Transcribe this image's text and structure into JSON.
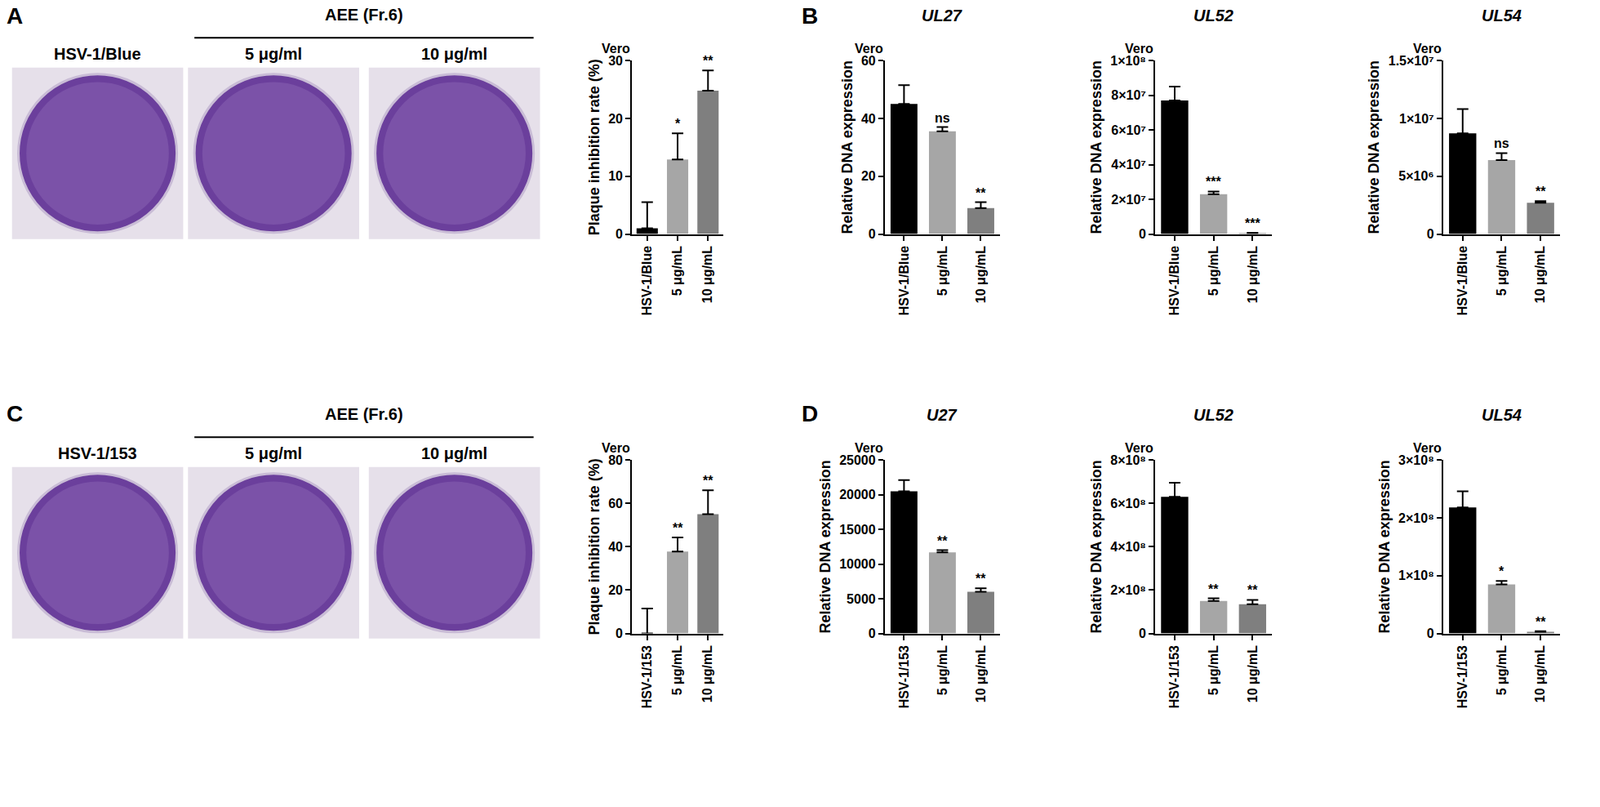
{
  "panel_labels": [
    "A",
    "B",
    "C",
    "D"
  ],
  "photo_panels": [
    {
      "control": "HSV-1/Blue",
      "treatment": "AEE (Fr.6)",
      "doses": [
        "5 μg/ml",
        "10 μg/ml"
      ]
    },
    {
      "control": "HSV-1/153",
      "treatment": "AEE (Fr.6)",
      "doses": [
        "5 μg/ml",
        "10 μg/ml"
      ]
    }
  ],
  "chart_data": [
    {
      "type": "bar",
      "subtitle": "Vero",
      "y_label": "Plaque inhibition rate (%)",
      "categories": [
        "HSV-1/Blue",
        "5 μg/mL",
        "10 μg/mL"
      ],
      "values": [
        1,
        12.9,
        24.8
      ],
      "error": [
        4.5,
        4.5,
        3.5
      ],
      "significance": [
        null,
        "*",
        "**"
      ],
      "colors": [
        "#000000",
        "#a6a6a6",
        "#7f7f7f"
      ],
      "ylim": [
        0,
        30
      ],
      "yticks": [
        0,
        10,
        20,
        30
      ]
    },
    {
      "type": "bar",
      "title": "UL27",
      "subtitle": "Vero",
      "y_label": "Relative DNA expression",
      "categories": [
        "HSV-1/Blue",
        "5 μg/mL",
        "10 μg/mL"
      ],
      "values": [
        45,
        35.5,
        9
      ],
      "error": [
        6.5,
        1.5,
        2
      ],
      "significance": [
        null,
        "ns",
        "**"
      ],
      "colors": [
        "#000000",
        "#a6a6a6",
        "#7f7f7f"
      ],
      "ylim": [
        0,
        60
      ],
      "yticks": [
        0,
        20,
        40,
        60
      ]
    },
    {
      "type": "bar",
      "title": "UL52",
      "subtitle": "Vero",
      "y_label": "Relative DNA expression",
      "categories": [
        "HSV-1/Blue",
        "5 μg/mL",
        "10 μg/mL"
      ],
      "values": [
        77000000,
        23000000,
        500000
      ],
      "error": [
        8000000,
        1500000,
        200000
      ],
      "significance": [
        null,
        "***",
        "***"
      ],
      "colors": [
        "#000000",
        "#a6a6a6",
        "#7f7f7f"
      ],
      "ylim": [
        0,
        100000000
      ],
      "yticks": [
        0,
        {
          "value": 20000000,
          "label": "2×10⁷"
        },
        {
          "value": 40000000,
          "label": "4×10⁷"
        },
        {
          "value": 60000000,
          "label": "6×10⁷"
        },
        {
          "value": 80000000,
          "label": "8×10⁷"
        },
        {
          "value": 100000000,
          "label": "1×10⁸"
        }
      ]
    },
    {
      "type": "bar",
      "title": "UL54",
      "subtitle": "Vero",
      "y_label": "Relative DNA expression",
      "categories": [
        "HSV-1/Blue",
        "5 μg/mL",
        "10 μg/mL"
      ],
      "values": [
        8700000,
        6400000,
        2700000
      ],
      "error": [
        2100000,
        600000,
        150000
      ],
      "significance": [
        null,
        "ns",
        "**"
      ],
      "colors": [
        "#000000",
        "#a6a6a6",
        "#7f7f7f"
      ],
      "ylim": [
        0,
        15000000
      ],
      "yticks": [
        0,
        {
          "value": 5000000,
          "label": "5×10⁶"
        },
        {
          "value": 10000000,
          "label": "1×10⁷"
        },
        {
          "value": 15000000,
          "label": "1.5×10⁷"
        }
      ]
    },
    {
      "type": "bar",
      "subtitle": "Vero",
      "y_label": "Plaque inhibition rate (%)",
      "categories": [
        "HSV-1/153",
        "5 μg/mL",
        "10 μg/mL"
      ],
      "values": [
        0,
        37.8,
        55
      ],
      "error": [
        11.5,
        6.5,
        11
      ],
      "significance": [
        null,
        "**",
        "**"
      ],
      "colors": [
        "#000000",
        "#a6a6a6",
        "#7f7f7f"
      ],
      "ylim": [
        0,
        80
      ],
      "yticks": [
        0,
        20,
        40,
        60,
        80
      ]
    },
    {
      "type": "bar",
      "title": "U27",
      "subtitle": "Vero",
      "y_label": "Relative DNA expression",
      "categories": [
        "HSV-1/153",
        "5 μg/mL",
        "10 μg/mL"
      ],
      "values": [
        20500,
        11700,
        6000
      ],
      "error": [
        1600,
        300,
        500
      ],
      "significance": [
        null,
        "**",
        "**"
      ],
      "colors": [
        "#000000",
        "#a6a6a6",
        "#7f7f7f"
      ],
      "ylim": [
        0,
        25000
      ],
      "yticks": [
        0,
        5000,
        10000,
        15000,
        20000,
        25000
      ]
    },
    {
      "type": "bar",
      "title": "UL52",
      "subtitle": "Vero",
      "y_label": "Relative DNA expression",
      "categories": [
        "HSV-1/153",
        "5 μg/mL",
        "10 μg/mL"
      ],
      "values": [
        630000000,
        150000000,
        135000000
      ],
      "error": [
        65000000,
        12000000,
        20000000
      ],
      "significance": [
        null,
        "**",
        "**"
      ],
      "colors": [
        "#000000",
        "#a6a6a6",
        "#7f7f7f"
      ],
      "ylim": [
        0,
        800000000
      ],
      "yticks": [
        0,
        {
          "value": 200000000,
          "label": "2×10⁸"
        },
        {
          "value": 400000000,
          "label": "4×10⁸"
        },
        {
          "value": 600000000,
          "label": "6×10⁸"
        },
        {
          "value": 800000000,
          "label": "8×10⁸"
        }
      ]
    },
    {
      "type": "bar",
      "title": "UL54",
      "subtitle": "Vero",
      "y_label": "Relative DNA expression",
      "categories": [
        "HSV-1/153",
        "5 μg/mL",
        "10 μg/mL"
      ],
      "values": [
        218000000,
        85000000,
        3000000
      ],
      "error": [
        28000000,
        6000000,
        1000000
      ],
      "significance": [
        null,
        "*",
        "**"
      ],
      "colors": [
        "#000000",
        "#a6a6a6",
        "#7f7f7f"
      ],
      "ylim": [
        0,
        300000000
      ],
      "yticks": [
        0,
        {
          "value": 100000000,
          "label": "1×10⁸"
        },
        {
          "value": 200000000,
          "label": "2×10⁸"
        },
        {
          "value": 300000000,
          "label": "3×10⁸"
        }
      ]
    }
  ]
}
